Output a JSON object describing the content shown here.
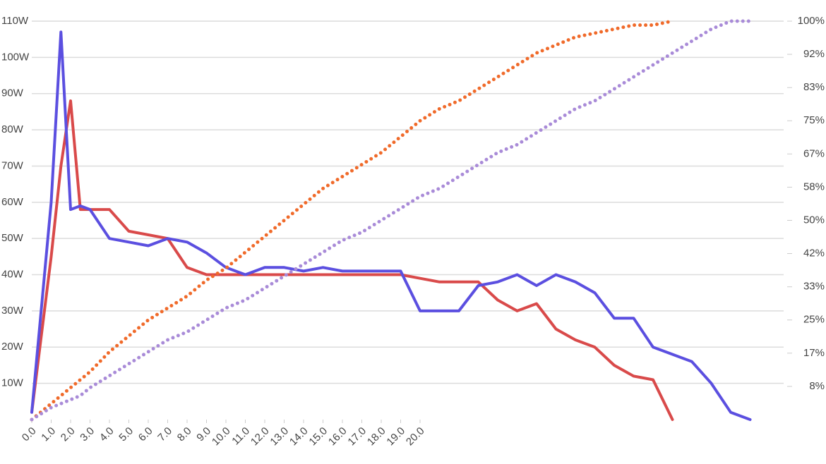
{
  "chart_data": {
    "type": "line",
    "x": [
      0,
      1,
      1.5,
      2,
      2.5,
      3,
      4,
      5,
      6,
      7,
      8,
      9,
      10,
      11,
      12,
      13,
      14,
      15,
      16,
      17,
      18,
      19,
      20,
      21,
      22,
      23,
      24,
      25,
      26,
      27,
      28,
      29,
      30,
      31,
      32,
      33,
      34,
      35,
      36,
      37
    ],
    "xlim": [
      0,
      38
    ],
    "xticks": [
      {
        "value": 0,
        "label": "0.0"
      },
      {
        "value": 1,
        "label": "1.0"
      },
      {
        "value": 2,
        "label": "2.0"
      },
      {
        "value": 3,
        "label": "3.0"
      },
      {
        "value": 4,
        "label": "4.0"
      },
      {
        "value": 5,
        "label": "5.0"
      },
      {
        "value": 6,
        "label": "6.0"
      },
      {
        "value": 7,
        "label": "7.0"
      },
      {
        "value": 8,
        "label": "8.0"
      },
      {
        "value": 9,
        "label": "9.0"
      },
      {
        "value": 10,
        "label": "10.0"
      },
      {
        "value": 11,
        "label": "11.0"
      },
      {
        "value": 12,
        "label": "12.0"
      },
      {
        "value": 13,
        "label": "13.0"
      },
      {
        "value": 14,
        "label": "14.0"
      },
      {
        "value": 15,
        "label": "15.0"
      },
      {
        "value": 16,
        "label": "16.0"
      },
      {
        "value": 17,
        "label": "17.0"
      },
      {
        "value": 18,
        "label": "18.0"
      },
      {
        "value": 19,
        "label": "19.0"
      },
      {
        "value": 20,
        "label": "20.0"
      }
    ],
    "ylim": [
      0,
      110
    ],
    "yticks": [
      {
        "value": 10,
        "label": "10W"
      },
      {
        "value": 20,
        "label": "20W"
      },
      {
        "value": 30,
        "label": "30W"
      },
      {
        "value": 40,
        "label": "40W"
      },
      {
        "value": 50,
        "label": "50W"
      },
      {
        "value": 60,
        "label": "60W"
      },
      {
        "value": 70,
        "label": "70W"
      },
      {
        "value": 80,
        "label": "80W"
      },
      {
        "value": 90,
        "label": "90W"
      },
      {
        "value": 100,
        "label": "100W"
      },
      {
        "value": 110,
        "label": "110W"
      }
    ],
    "y2lim": [
      0,
      100
    ],
    "y2ticks": [
      {
        "value": 8.33,
        "label": "8%"
      },
      {
        "value": 16.67,
        "label": "17%"
      },
      {
        "value": 25,
        "label": "25%"
      },
      {
        "value": 33.33,
        "label": "33%"
      },
      {
        "value": 41.67,
        "label": "42%"
      },
      {
        "value": 50,
        "label": "50%"
      },
      {
        "value": 58.33,
        "label": "58%"
      },
      {
        "value": 66.67,
        "label": "67%"
      },
      {
        "value": 75,
        "label": "75%"
      },
      {
        "value": 83.33,
        "label": "83%"
      },
      {
        "value": 91.67,
        "label": "92%"
      },
      {
        "value": 100,
        "label": "100%"
      }
    ],
    "grid": true,
    "series": [
      {
        "color": "#d94a4a",
        "style": "solid",
        "values": [
          2,
          45,
          70,
          88,
          58,
          58,
          58,
          52,
          51,
          50,
          42,
          40,
          40,
          40,
          40,
          40,
          40,
          40,
          40,
          40,
          40,
          40,
          39,
          38,
          38,
          38,
          33,
          30,
          32,
          25,
          22,
          20,
          15,
          12,
          11,
          0,
          null,
          null,
          null,
          null
        ]
      },
      {
        "color": "#5b4fe0",
        "style": "solid",
        "values": [
          2,
          60,
          107,
          58,
          59,
          58,
          50,
          49,
          48,
          50,
          49,
          46,
          42,
          40,
          42,
          42,
          41,
          42,
          41,
          41,
          41,
          41,
          30,
          30,
          30,
          37,
          38,
          40,
          37,
          40,
          38,
          35,
          28,
          28,
          20,
          18,
          16,
          10,
          2,
          0
        ]
      },
      {
        "color": "#f06a2a",
        "style": "dotted",
        "axis": "y2",
        "values": [
          0,
          4,
          6,
          8,
          10,
          12,
          17,
          21,
          25,
          28,
          31,
          35,
          38,
          42,
          46,
          50,
          54,
          58,
          61,
          64,
          67,
          71,
          75,
          78,
          80,
          83,
          86,
          89,
          92,
          94,
          96,
          97,
          98,
          99,
          99,
          100,
          null,
          null,
          null,
          null
        ]
      },
      {
        "color": "#a98bd8",
        "style": "dotted",
        "axis": "y2",
        "values": [
          0,
          3,
          4,
          5,
          6,
          8,
          11,
          14,
          17,
          20,
          22,
          25,
          28,
          30,
          33,
          36,
          39,
          42,
          45,
          47,
          50,
          53,
          56,
          58,
          61,
          64,
          67,
          69,
          72,
          75,
          78,
          80,
          83,
          86,
          89,
          92,
          95,
          98,
          100,
          100
        ]
      }
    ]
  }
}
